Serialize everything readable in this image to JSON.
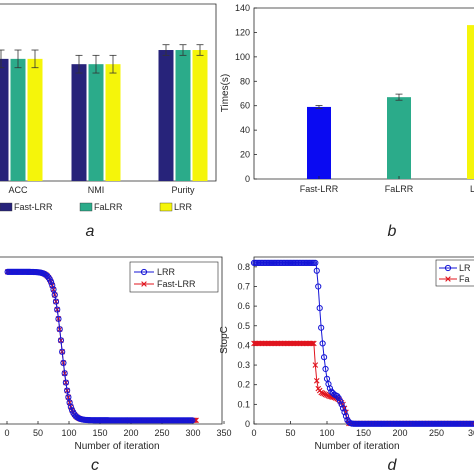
{
  "panel_labels": {
    "a": "a",
    "b": "b",
    "c": "c",
    "d": "d"
  },
  "chart_data": [
    {
      "panel": "a",
      "type": "bar",
      "categories": [
        "ACC",
        "NMI",
        "Purity"
      ],
      "series": [
        {
          "name": "Fast-LRR",
          "color": "#27237a",
          "values": [
            0.69,
            0.66,
            0.74
          ],
          "errors": [
            0.05,
            0.05,
            0.03
          ]
        },
        {
          "name": "FaLRR",
          "color": "#2bab8a",
          "values": [
            0.69,
            0.66,
            0.74
          ],
          "errors": [
            0.05,
            0.05,
            0.03
          ]
        },
        {
          "name": "LRR",
          "color": "#f5f50a",
          "values": [
            0.69,
            0.66,
            0.74
          ],
          "errors": [
            0.05,
            0.05,
            0.03
          ]
        }
      ],
      "ylim": [
        0,
        1
      ],
      "legend": "bottom"
    },
    {
      "panel": "b",
      "type": "bar",
      "categories": [
        "Fast-LRR",
        "FaLRR",
        "LRR"
      ],
      "values": [
        59,
        67,
        126
      ],
      "errors": [
        1.2,
        2.5,
        0
      ],
      "colors": [
        "#0a0af2",
        "#2bab8a",
        "#f5f50a"
      ],
      "ylabel": "Times(s)",
      "ylim": [
        0,
        140
      ],
      "yticks": [
        "0",
        "20",
        "40",
        "60",
        "80",
        "100",
        "120",
        "140"
      ]
    },
    {
      "panel": "c",
      "type": "line",
      "xlabel": "Number of iteration",
      "xlim": [
        0,
        350
      ],
      "ylim": [
        0,
        0.9
      ],
      "xticks": [
        "0",
        "50",
        "100",
        "150",
        "200",
        "250",
        "300",
        "350"
      ],
      "series": [
        {
          "name": "LRR",
          "color": "#1515d6",
          "marker": "circle",
          "start_x": 1,
          "end_x": 300,
          "drop_x": 88,
          "high": 0.82,
          "low": 0.02
        },
        {
          "name": "Fast-LRR",
          "color": "#e0141e",
          "marker": "x",
          "start_x": 1,
          "end_x": 305,
          "drop_x": 88,
          "high": 0.82,
          "low": 0.02
        }
      ],
      "legend": "top-right"
    },
    {
      "panel": "d",
      "type": "line",
      "xlabel": "Number of iteration",
      "ylabel": "StopC",
      "xlim": [
        0,
        300
      ],
      "ylim": [
        0,
        0.85
      ],
      "xticks": [
        "0",
        "50",
        "100",
        "150",
        "200",
        "250",
        "30"
      ],
      "yticks": [
        "0",
        "0.1",
        "0.2",
        "0.3",
        "0.4",
        "0.5",
        "0.6",
        "0.7",
        "0.8"
      ],
      "series": [
        {
          "name": "LRR",
          "color": "#1515d6",
          "marker": "circle",
          "x": [
            0,
            85,
            88,
            90,
            92,
            94,
            96,
            98,
            100,
            103,
            106,
            110,
            115,
            120,
            125,
            128,
            131,
            134,
            137,
            300
          ],
          "y": [
            0.82,
            0.82,
            0.7,
            0.59,
            0.49,
            0.41,
            0.34,
            0.28,
            0.23,
            0.19,
            0.165,
            0.15,
            0.14,
            0.1,
            0.05,
            0.02,
            0.006,
            0.002,
            0.001,
            0.001
          ]
        },
        {
          "name": "Fast-LRR",
          "color": "#e0141e",
          "marker": "x",
          "x": [
            0,
            82,
            84,
            86,
            88,
            92,
            98,
            104,
            110,
            116,
            122,
            126,
            128,
            130,
            300
          ],
          "y": [
            0.41,
            0.41,
            0.3,
            0.22,
            0.18,
            0.16,
            0.15,
            0.14,
            0.135,
            0.125,
            0.1,
            0.06,
            0.02,
            0.003,
            0.003
          ]
        }
      ],
      "legend_visible": [
        "LR",
        "Fa"
      ],
      "legend": "top-right"
    }
  ]
}
